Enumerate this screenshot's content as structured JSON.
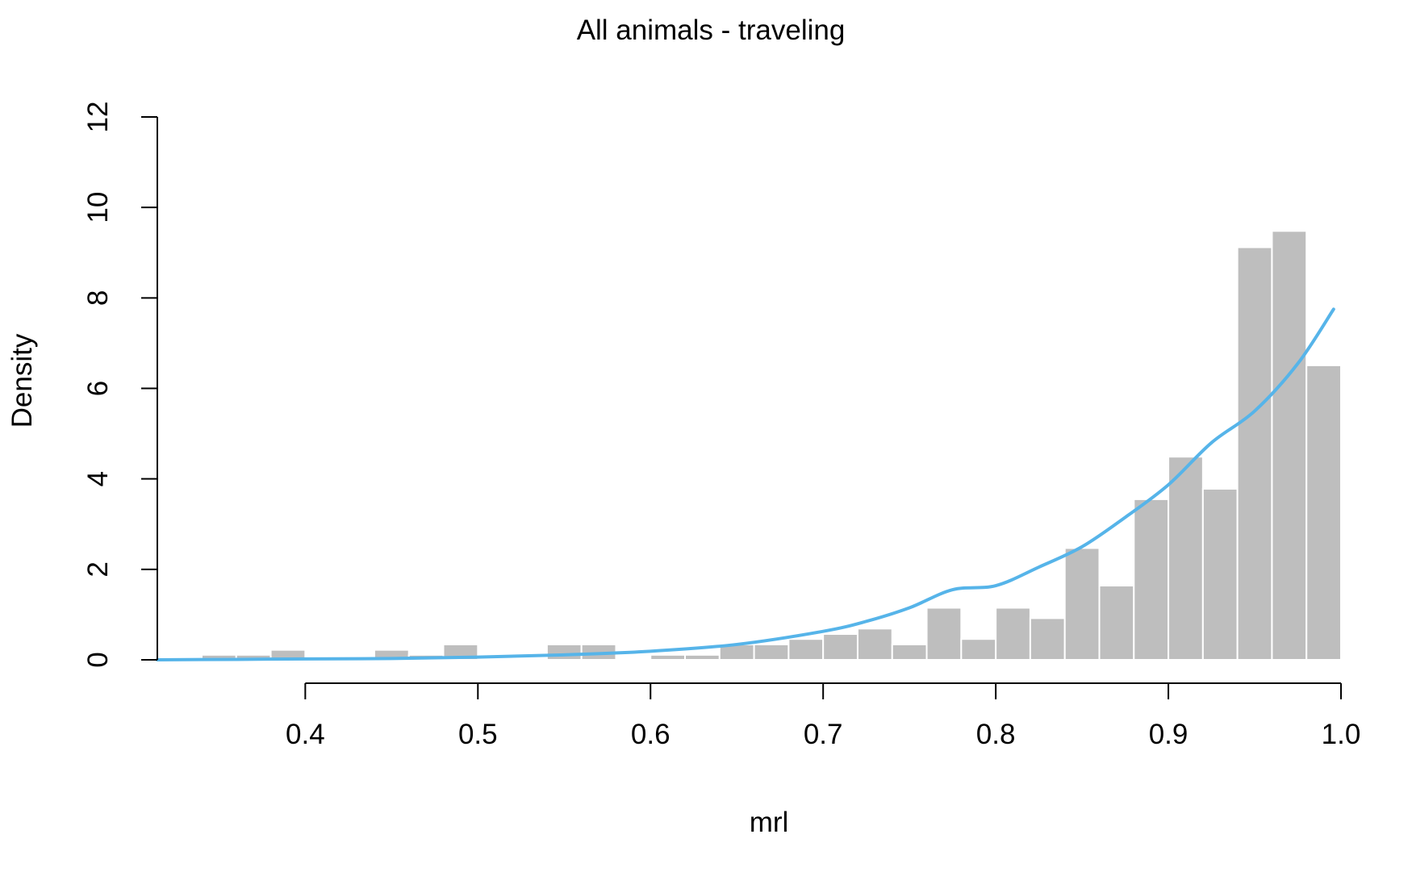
{
  "chart_data": {
    "type": "bar",
    "title": "All animals - traveling",
    "xlabel": "mrl",
    "ylabel": "Density",
    "xlim": [
      0.3143,
      1.0
    ],
    "ylim": [
      0,
      12
    ],
    "x_ticks": [
      {
        "value": 0.4,
        "label": "0.4"
      },
      {
        "value": 0.5,
        "label": "0.5"
      },
      {
        "value": 0.6,
        "label": "0.6"
      },
      {
        "value": 0.7,
        "label": "0.7"
      },
      {
        "value": 0.8,
        "label": "0.8"
      },
      {
        "value": 0.9,
        "label": "0.9"
      },
      {
        "value": 1.0,
        "label": "1.0"
      }
    ],
    "y_ticks": [
      {
        "value": 0,
        "label": "0"
      },
      {
        "value": 2,
        "label": "2"
      },
      {
        "value": 4,
        "label": "4"
      },
      {
        "value": 6,
        "label": "6"
      },
      {
        "value": 8,
        "label": "8"
      },
      {
        "value": 10,
        "label": "10"
      },
      {
        "value": 12,
        "label": "12"
      }
    ],
    "grid": false,
    "bin_width": 0.02,
    "bins": [
      {
        "x0": 0.32,
        "x1": 0.34,
        "density": 0.0
      },
      {
        "x0": 0.34,
        "x1": 0.36,
        "density": 0.11
      },
      {
        "x0": 0.36,
        "x1": 0.38,
        "density": 0.11
      },
      {
        "x0": 0.38,
        "x1": 0.4,
        "density": 0.22
      },
      {
        "x0": 0.4,
        "x1": 0.42,
        "density": 0.0
      },
      {
        "x0": 0.42,
        "x1": 0.44,
        "density": 0.0
      },
      {
        "x0": 0.44,
        "x1": 0.46,
        "density": 0.22
      },
      {
        "x0": 0.46,
        "x1": 0.48,
        "density": 0.11
      },
      {
        "x0": 0.48,
        "x1": 0.5,
        "density": 0.34
      },
      {
        "x0": 0.5,
        "x1": 0.52,
        "density": 0.0
      },
      {
        "x0": 0.52,
        "x1": 0.54,
        "density": 0.0
      },
      {
        "x0": 0.54,
        "x1": 0.56,
        "density": 0.34
      },
      {
        "x0": 0.56,
        "x1": 0.58,
        "density": 0.34
      },
      {
        "x0": 0.58,
        "x1": 0.6,
        "density": 0.0
      },
      {
        "x0": 0.6,
        "x1": 0.62,
        "density": 0.11
      },
      {
        "x0": 0.62,
        "x1": 0.64,
        "density": 0.11
      },
      {
        "x0": 0.64,
        "x1": 0.66,
        "density": 0.34
      },
      {
        "x0": 0.66,
        "x1": 0.68,
        "density": 0.34
      },
      {
        "x0": 0.68,
        "x1": 0.7,
        "density": 0.46
      },
      {
        "x0": 0.7,
        "x1": 0.72,
        "density": 0.57
      },
      {
        "x0": 0.72,
        "x1": 0.74,
        "density": 0.69
      },
      {
        "x0": 0.74,
        "x1": 0.76,
        "density": 0.34
      },
      {
        "x0": 0.76,
        "x1": 0.78,
        "density": 1.15
      },
      {
        "x0": 0.78,
        "x1": 0.8,
        "density": 0.46
      },
      {
        "x0": 0.8,
        "x1": 0.82,
        "density": 1.15
      },
      {
        "x0": 0.82,
        "x1": 0.84,
        "density": 0.92
      },
      {
        "x0": 0.84,
        "x1": 0.86,
        "density": 2.47
      },
      {
        "x0": 0.86,
        "x1": 0.88,
        "density": 1.64
      },
      {
        "x0": 0.88,
        "x1": 0.9,
        "density": 3.55
      },
      {
        "x0": 0.9,
        "x1": 0.92,
        "density": 4.49
      },
      {
        "x0": 0.92,
        "x1": 0.94,
        "density": 3.78
      },
      {
        "x0": 0.94,
        "x1": 0.96,
        "density": 9.12
      },
      {
        "x0": 0.96,
        "x1": 0.98,
        "density": 9.48
      },
      {
        "x0": 0.98,
        "x1": 1.0,
        "density": 6.51
      }
    ],
    "curve": {
      "x": [
        0.3143,
        0.36,
        0.4,
        0.45,
        0.5,
        0.55,
        0.6,
        0.65,
        0.7,
        0.725,
        0.75,
        0.775,
        0.8,
        0.825,
        0.85,
        0.875,
        0.9,
        0.925,
        0.95,
        0.975,
        0.9957
      ],
      "y": [
        0.0,
        0.01,
        0.02,
        0.03,
        0.06,
        0.11,
        0.19,
        0.34,
        0.63,
        0.85,
        1.15,
        1.55,
        1.64,
        2.05,
        2.5,
        3.15,
        3.87,
        4.8,
        5.5,
        6.55,
        7.75
      ]
    },
    "colors": {
      "bar_fill": "#bebebe",
      "bar_stroke": "#ffffff",
      "curve": "#56b4e9",
      "axis": "#000000",
      "background": "#ffffff"
    }
  }
}
